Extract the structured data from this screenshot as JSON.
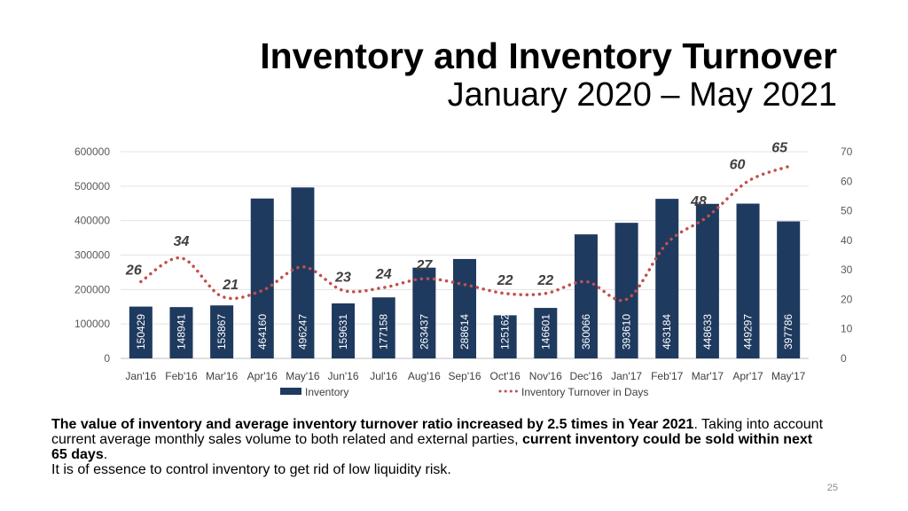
{
  "slide": {
    "title": "Inventory and Inventory Turnover",
    "subtitle": "January 2020 – May 2021",
    "caption": {
      "bold1": "The value of inventory and average inventory turnover ratio increased by 2.5 times in Year 2021",
      "text1": ". Taking into account current average monthly sales volume to both related and external parties, ",
      "bold2": "current inventory could be sold within next 65 days",
      "text2": ".",
      "line2": "It is of essence to control inventory to get rid of low liquidity risk."
    },
    "page_number": "25"
  },
  "chart_data": {
    "type": "bar",
    "categories": [
      "Jan'16",
      "Feb'16",
      "Mar'16",
      "Apr'16",
      "May'16",
      "Jun'16",
      "Jul'16",
      "Aug'16",
      "Sep'16",
      "Oct'16",
      "Nov'16",
      "Dec'16",
      "Jan'17",
      "Feb'17",
      "Mar'17",
      "Apr'17",
      "May'17"
    ],
    "series": [
      {
        "name": "Inventory",
        "type": "bar",
        "axis": "left",
        "color": "#1f3a5f",
        "values": [
          150429,
          148941,
          153867,
          464160,
          496247,
          159631,
          177158,
          263437,
          288614,
          125162,
          146601,
          360066,
          393610,
          463184,
          448633,
          449297,
          397786
        ]
      },
      {
        "name": "Inventory Turnover in Days",
        "type": "line",
        "style": "dotted",
        "axis": "right",
        "color": "#c0504d",
        "values": [
          26,
          34,
          21,
          23,
          31,
          23,
          24,
          27,
          25,
          22,
          22,
          26,
          20,
          39,
          48,
          60,
          65
        ]
      }
    ],
    "turnover_labels": [
      "26",
      "34",
      "21",
      "",
      "",
      "23",
      "24",
      "27",
      "",
      "22",
      "22",
      "",
      "",
      "",
      "48",
      "60",
      "65"
    ],
    "left_axis": {
      "min": 0,
      "max": 600000,
      "ticks": [
        "0",
        "100000",
        "200000",
        "300000",
        "400000",
        "500000",
        "600000"
      ]
    },
    "right_axis": {
      "min": 0,
      "max": 70,
      "ticks": [
        "0",
        "10",
        "20",
        "30",
        "40",
        "50",
        "60",
        "70"
      ]
    },
    "grid": true,
    "legend_position": "bottom"
  }
}
